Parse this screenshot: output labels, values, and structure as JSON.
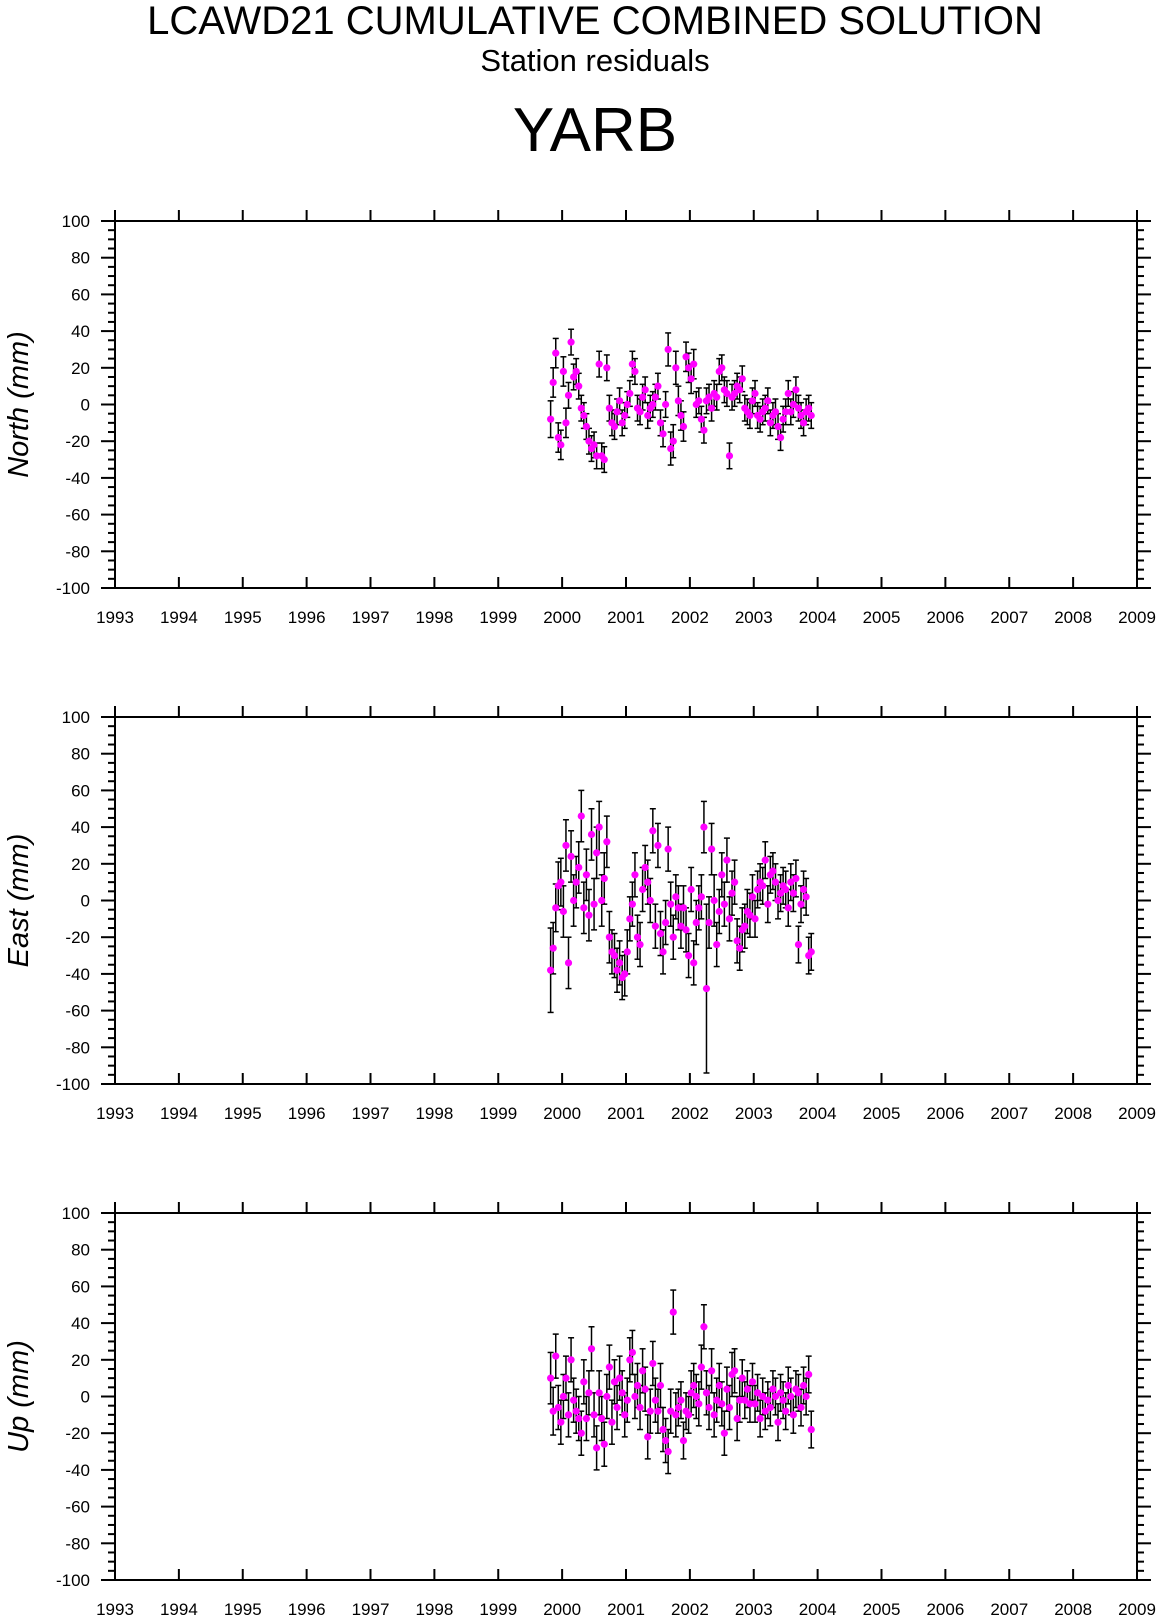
{
  "header": {
    "title": "LCAWD21 CUMULATIVE COMBINED SOLUTION",
    "subtitle": "Station residuals",
    "station": "YARB"
  },
  "colors": {
    "marker": "#ff00ff",
    "errorbar": "#000000",
    "axis": "#000000"
  },
  "chart_data": [
    {
      "type": "scatter",
      "ylabel": "North (mm)",
      "xlim": [
        1993,
        2009
      ],
      "ylim": [
        -100,
        100
      ],
      "x_ticks": [
        "1993",
        "1994",
        "1995",
        "1996",
        "1997",
        "1998",
        "1999",
        "2000",
        "2001",
        "2002",
        "2003",
        "2004",
        "2005",
        "2006",
        "2007",
        "2008",
        "2009"
      ],
      "y_ticks": [
        "100",
        "80",
        "60",
        "40",
        "20",
        "0",
        "-20",
        "-40",
        "-60",
        "-80",
        "-100"
      ],
      "series": [
        {
          "x": [
            1999.82,
            1999.86,
            1999.9,
            1999.94,
            1999.98,
            2000.02,
            2000.06,
            2000.1,
            2000.14,
            2000.18,
            2000.22,
            2000.26,
            2000.3,
            2000.34,
            2000.38,
            2000.42,
            2000.46,
            2000.5,
            2000.54,
            2000.58,
            2000.62,
            2000.66,
            2000.7,
            2000.74,
            2000.78,
            2000.82,
            2000.86,
            2000.9,
            2000.94,
            2000.98,
            2001.02,
            2001.06,
            2001.1,
            2001.14,
            2001.18,
            2001.22,
            2001.26,
            2001.3,
            2001.34,
            2001.38,
            2001.42,
            2001.46,
            2001.5,
            2001.54,
            2001.58,
            2001.62,
            2001.66,
            2001.7,
            2001.74,
            2001.78,
            2001.82,
            2001.86,
            2001.9,
            2001.94,
            2001.98,
            2002.02,
            2002.06,
            2002.1,
            2002.14,
            2002.18,
            2002.22,
            2002.26,
            2002.3,
            2002.34,
            2002.38,
            2002.42,
            2002.46,
            2002.5,
            2002.54,
            2002.58,
            2002.62,
            2002.66,
            2002.7,
            2002.74,
            2002.78,
            2002.82,
            2002.86,
            2002.9,
            2002.94,
            2002.98,
            2003.02,
            2003.06,
            2003.1,
            2003.14,
            2003.18,
            2003.22,
            2003.26,
            2003.3,
            2003.34,
            2003.38,
            2003.42,
            2003.46,
            2003.5,
            2003.54,
            2003.58,
            2003.62,
            2003.66,
            2003.7,
            2003.74,
            2003.78,
            2003.82,
            2003.86,
            2003.9
          ],
          "y": [
            -8,
            12,
            28,
            -18,
            -22,
            18,
            -10,
            5,
            34,
            15,
            18,
            10,
            -2,
            -6,
            -12,
            -20,
            -24,
            -22,
            -28,
            22,
            -28,
            -30,
            20,
            -2,
            -10,
            -12,
            -4,
            2,
            -10,
            -6,
            0,
            6,
            22,
            18,
            -2,
            -4,
            4,
            8,
            -6,
            -2,
            0,
            4,
            10,
            -10,
            -16,
            0,
            30,
            -24,
            -20,
            20,
            2,
            -6,
            -12,
            26,
            20,
            14,
            22,
            0,
            2,
            -8,
            -14,
            2,
            4,
            -2,
            6,
            4,
            18,
            20,
            8,
            6,
            -28,
            4,
            6,
            10,
            8,
            14,
            -2,
            -4,
            -6,
            2,
            6,
            -6,
            -8,
            -4,
            -2,
            2,
            -10,
            -6,
            -4,
            -12,
            -18,
            -8,
            -4,
            6,
            -4,
            0,
            8,
            -2,
            -6,
            -10,
            -4,
            -2,
            -6
          ],
          "err": [
            10,
            8,
            8,
            8,
            8,
            8,
            8,
            7,
            7,
            7,
            7,
            7,
            7,
            7,
            7,
            7,
            7,
            7,
            7,
            7,
            7,
            7,
            7,
            7,
            7,
            7,
            7,
            7,
            7,
            7,
            7,
            7,
            7,
            7,
            7,
            7,
            7,
            7,
            7,
            7,
            7,
            7,
            7,
            7,
            7,
            7,
            9,
            9,
            9,
            9,
            8,
            8,
            8,
            8,
            8,
            8,
            8,
            7,
            7,
            7,
            7,
            7,
            7,
            7,
            7,
            7,
            7,
            7,
            7,
            7,
            7,
            7,
            7,
            7,
            7,
            7,
            7,
            7,
            7,
            7,
            7,
            7,
            7,
            7,
            7,
            7,
            7,
            7,
            7,
            7,
            7,
            7,
            7,
            7,
            7,
            7,
            7,
            7,
            7,
            7,
            7,
            7,
            7
          ]
        }
      ]
    },
    {
      "type": "scatter",
      "ylabel": "East (mm)",
      "xlim": [
        1993,
        2009
      ],
      "ylim": [
        -100,
        100
      ],
      "x_ticks": [
        "1993",
        "1994",
        "1995",
        "1996",
        "1997",
        "1998",
        "1999",
        "2000",
        "2001",
        "2002",
        "2003",
        "2004",
        "2005",
        "2006",
        "2007",
        "2008",
        "2009"
      ],
      "y_ticks": [
        "100",
        "80",
        "60",
        "40",
        "20",
        "0",
        "-20",
        "-40",
        "-60",
        "-80",
        "-100"
      ],
      "series": [
        {
          "x": [
            1999.82,
            1999.86,
            1999.9,
            1999.94,
            1999.98,
            2000.02,
            2000.06,
            2000.1,
            2000.14,
            2000.18,
            2000.22,
            2000.26,
            2000.3,
            2000.34,
            2000.38,
            2000.42,
            2000.46,
            2000.5,
            2000.54,
            2000.58,
            2000.62,
            2000.66,
            2000.7,
            2000.74,
            2000.78,
            2000.82,
            2000.86,
            2000.9,
            2000.94,
            2000.98,
            2001.02,
            2001.06,
            2001.1,
            2001.14,
            2001.18,
            2001.22,
            2001.26,
            2001.3,
            2001.34,
            2001.38,
            2001.42,
            2001.46,
            2001.5,
            2001.54,
            2001.58,
            2001.62,
            2001.66,
            2001.7,
            2001.74,
            2001.78,
            2001.82,
            2001.86,
            2001.9,
            2001.94,
            2001.98,
            2002.02,
            2002.06,
            2002.1,
            2002.14,
            2002.18,
            2002.22,
            2002.26,
            2002.3,
            2002.34,
            2002.38,
            2002.42,
            2002.46,
            2002.5,
            2002.54,
            2002.58,
            2002.62,
            2002.66,
            2002.7,
            2002.74,
            2002.78,
            2002.82,
            2002.86,
            2002.9,
            2002.94,
            2002.98,
            2003.02,
            2003.06,
            2003.1,
            2003.14,
            2003.18,
            2003.22,
            2003.26,
            2003.3,
            2003.34,
            2003.38,
            2003.42,
            2003.46,
            2003.5,
            2003.54,
            2003.58,
            2003.62,
            2003.66,
            2003.7,
            2003.74,
            2003.78,
            2003.82,
            2003.86,
            2003.9
          ],
          "y": [
            -38,
            -26,
            -4,
            8,
            10,
            -6,
            30,
            -34,
            24,
            0,
            10,
            18,
            46,
            -4,
            14,
            -8,
            36,
            -2,
            26,
            40,
            0,
            12,
            32,
            -20,
            -28,
            -30,
            -38,
            -34,
            -42,
            -40,
            -28,
            -10,
            -2,
            14,
            -20,
            -24,
            6,
            18,
            10,
            0,
            38,
            -14,
            30,
            -18,
            -28,
            -12,
            28,
            -2,
            -20,
            2,
            -4,
            -14,
            -4,
            -16,
            -30,
            6,
            -34,
            -12,
            -4,
            2,
            40,
            -48,
            -12,
            28,
            0,
            -24,
            -6,
            14,
            -2,
            22,
            -10,
            4,
            10,
            -22,
            -26,
            -16,
            -14,
            -6,
            -8,
            2,
            -10,
            6,
            10,
            8,
            22,
            -2,
            14,
            16,
            10,
            0,
            4,
            8,
            6,
            -4,
            10,
            4,
            12,
            -24,
            -2,
            6,
            2,
            -30,
            -28
          ],
          "err": [
            23,
            14,
            13,
            13,
            13,
            14,
            14,
            14,
            14,
            14,
            14,
            14,
            14,
            14,
            14,
            14,
            14,
            14,
            14,
            14,
            14,
            14,
            14,
            14,
            12,
            12,
            12,
            12,
            12,
            12,
            12,
            12,
            12,
            12,
            12,
            12,
            12,
            12,
            12,
            12,
            12,
            12,
            12,
            12,
            12,
            12,
            12,
            12,
            12,
            12,
            12,
            12,
            12,
            12,
            12,
            12,
            12,
            12,
            12,
            12,
            14,
            46,
            14,
            14,
            14,
            12,
            12,
            12,
            12,
            12,
            12,
            12,
            12,
            12,
            12,
            12,
            12,
            12,
            12,
            12,
            10,
            10,
            10,
            10,
            10,
            10,
            10,
            10,
            10,
            10,
            10,
            10,
            10,
            10,
            10,
            10,
            10,
            10,
            10,
            10,
            10,
            10,
            10
          ]
        }
      ]
    },
    {
      "type": "scatter",
      "ylabel": "Up (mm)",
      "xlim": [
        1993,
        2009
      ],
      "ylim": [
        -100,
        100
      ],
      "x_ticks": [
        "1993",
        "1994",
        "1995",
        "1996",
        "1997",
        "1998",
        "1999",
        "2000",
        "2001",
        "2002",
        "2003",
        "2004",
        "2005",
        "2006",
        "2007",
        "2008",
        "2009"
      ],
      "y_ticks": [
        "100",
        "80",
        "60",
        "40",
        "20",
        "0",
        "-20",
        "-40",
        "-60",
        "-80",
        "-100"
      ],
      "series": [
        {
          "x": [
            1999.82,
            1999.86,
            1999.9,
            1999.94,
            1999.98,
            2000.02,
            2000.06,
            2000.1,
            2000.14,
            2000.18,
            2000.22,
            2000.26,
            2000.3,
            2000.34,
            2000.38,
            2000.42,
            2000.46,
            2000.5,
            2000.54,
            2000.58,
            2000.62,
            2000.66,
            2000.7,
            2000.74,
            2000.78,
            2000.82,
            2000.86,
            2000.9,
            2000.94,
            2000.98,
            2001.02,
            2001.06,
            2001.1,
            2001.14,
            2001.18,
            2001.22,
            2001.26,
            2001.3,
            2001.34,
            2001.38,
            2001.42,
            2001.46,
            2001.5,
            2001.54,
            2001.58,
            2001.62,
            2001.66,
            2001.7,
            2001.74,
            2001.78,
            2001.82,
            2001.86,
            2001.9,
            2001.94,
            2001.98,
            2002.02,
            2002.06,
            2002.1,
            2002.14,
            2002.18,
            2002.22,
            2002.26,
            2002.3,
            2002.34,
            2002.38,
            2002.42,
            2002.46,
            2002.5,
            2002.54,
            2002.58,
            2002.62,
            2002.66,
            2002.7,
            2002.74,
            2002.78,
            2002.82,
            2002.86,
            2002.9,
            2002.94,
            2002.98,
            2003.02,
            2003.06,
            2003.1,
            2003.14,
            2003.18,
            2003.22,
            2003.26,
            2003.3,
            2003.34,
            2003.38,
            2003.42,
            2003.46,
            2003.5,
            2003.54,
            2003.58,
            2003.62,
            2003.66,
            2003.7,
            2003.74,
            2003.78,
            2003.82,
            2003.86,
            2003.9
          ],
          "y": [
            10,
            -8,
            22,
            -6,
            -14,
            0,
            10,
            -10,
            20,
            -2,
            -8,
            -12,
            -20,
            8,
            -12,
            2,
            26,
            -10,
            -28,
            2,
            -12,
            -26,
            0,
            16,
            -14,
            8,
            -6,
            10,
            2,
            -10,
            -2,
            20,
            24,
            0,
            6,
            -6,
            14,
            4,
            -22,
            -8,
            18,
            -2,
            -8,
            6,
            -18,
            -24,
            -30,
            -8,
            46,
            -10,
            -6,
            -2,
            -24,
            -8,
            -10,
            2,
            6,
            0,
            -4,
            16,
            38,
            2,
            -6,
            14,
            -10,
            -2,
            6,
            -4,
            -20,
            4,
            -6,
            12,
            14,
            -12,
            -2,
            10,
            -2,
            4,
            -4,
            8,
            -4,
            2,
            -12,
            0,
            -8,
            -2,
            -6,
            4,
            0,
            -14,
            2,
            -2,
            -8,
            6,
            0,
            -10,
            4,
            2,
            -6,
            6,
            0,
            12,
            -18
          ],
          "err": [
            14,
            13,
            12,
            12,
            12,
            12,
            12,
            12,
            12,
            12,
            12,
            12,
            12,
            12,
            12,
            12,
            12,
            12,
            12,
            12,
            12,
            12,
            12,
            12,
            12,
            12,
            12,
            12,
            12,
            12,
            12,
            12,
            12,
            12,
            12,
            12,
            12,
            12,
            12,
            12,
            12,
            12,
            12,
            12,
            12,
            12,
            12,
            12,
            12,
            12,
            10,
            10,
            10,
            10,
            10,
            12,
            12,
            12,
            12,
            12,
            12,
            12,
            12,
            12,
            12,
            12,
            12,
            12,
            12,
            12,
            12,
            12,
            12,
            12,
            12,
            10,
            10,
            10,
            10,
            10,
            10,
            10,
            10,
            10,
            10,
            10,
            10,
            10,
            10,
            10,
            10,
            10,
            10,
            10,
            10,
            10,
            10,
            10,
            10,
            10,
            10,
            10,
            10
          ]
        }
      ]
    }
  ]
}
